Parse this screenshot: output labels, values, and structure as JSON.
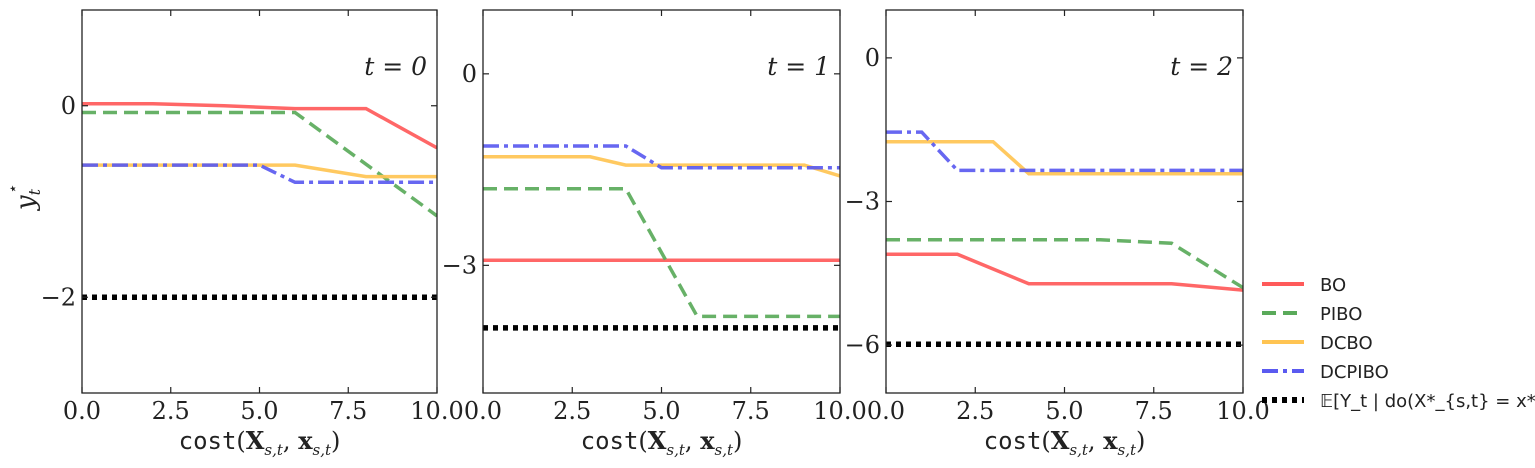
{
  "chart_data": [
    {
      "type": "line",
      "annotation": "t = 0",
      "xlabel": "cost(X_{s,t}, x_{s,t})",
      "ylabel": "y*_t",
      "xlim": [
        0,
        10
      ],
      "ylim": [
        -3.0,
        1.0
      ],
      "xticks": [
        "0.0",
        "2.5",
        "5.0",
        "7.5",
        "10.0"
      ],
      "yticks": [
        {
          "v": 0,
          "label": "0"
        },
        {
          "v": -2,
          "label": "−2"
        }
      ],
      "series": [
        {
          "name": "BO",
          "x": [
            0,
            2,
            4,
            6,
            8,
            10
          ],
          "y": [
            0.02,
            0.02,
            0.0,
            -0.03,
            -0.03,
            -0.44
          ]
        },
        {
          "name": "PIBO",
          "x": [
            0,
            6,
            10
          ],
          "y": [
            -0.07,
            -0.07,
            -1.15
          ]
        },
        {
          "name": "DCBO",
          "x": [
            0,
            6,
            8,
            10
          ],
          "y": [
            -0.62,
            -0.62,
            -0.74,
            -0.74
          ]
        },
        {
          "name": "DCPIBO",
          "x": [
            0,
            5,
            6,
            10
          ],
          "y": [
            -0.62,
            -0.62,
            -0.8,
            -0.8
          ]
        },
        {
          "name": "𝔼[Y_t | do(X*_{s,t} = x*_{s,t})]",
          "x": [
            0,
            10
          ],
          "y": [
            -2.0,
            -2.0
          ]
        }
      ]
    },
    {
      "type": "line",
      "annotation": "t = 1",
      "xlabel": "cost(X_{s,t}, x_{s,t})",
      "ylabel": "",
      "xlim": [
        0,
        10
      ],
      "ylim": [
        -5.0,
        1.0
      ],
      "xticks": [
        "0.0",
        "2.5",
        "5.0",
        "7.5",
        "10.0"
      ],
      "yticks": [
        {
          "v": 0,
          "label": "0"
        },
        {
          "v": -3,
          "label": "−3"
        }
      ],
      "series": [
        {
          "name": "BO",
          "x": [
            0,
            10
          ],
          "y": [
            -2.92,
            -2.92
          ]
        },
        {
          "name": "PIBO",
          "x": [
            0,
            4,
            6,
            10
          ],
          "y": [
            -1.8,
            -1.8,
            -3.8,
            -3.8
          ]
        },
        {
          "name": "DCBO",
          "x": [
            0,
            3,
            4,
            9,
            10
          ],
          "y": [
            -1.3,
            -1.3,
            -1.43,
            -1.43,
            -1.6
          ]
        },
        {
          "name": "DCPIBO",
          "x": [
            0,
            4,
            5,
            10
          ],
          "y": [
            -1.13,
            -1.13,
            -1.47,
            -1.47
          ]
        },
        {
          "name": "𝔼[Y_t | do(X*_{s,t} = x*_{s,t})]",
          "x": [
            0,
            10
          ],
          "y": [
            -3.98,
            -3.98
          ]
        }
      ]
    },
    {
      "type": "line",
      "annotation": "t = 2",
      "xlabel": "cost(X_{s,t}, x_{s,t})",
      "ylabel": "",
      "xlim": [
        0,
        10
      ],
      "ylim": [
        -7.0,
        1.0
      ],
      "xticks": [
        "0.0",
        "2.5",
        "5.0",
        "7.5",
        "10.0"
      ],
      "yticks": [
        {
          "v": 0,
          "label": "0"
        },
        {
          "v": -3,
          "label": "−3"
        },
        {
          "v": -6,
          "label": "−6"
        }
      ],
      "series": [
        {
          "name": "BO",
          "x": [
            0,
            2,
            4,
            8,
            10
          ],
          "y": [
            -4.1,
            -4.1,
            -4.72,
            -4.72,
            -4.85
          ]
        },
        {
          "name": "PIBO",
          "x": [
            0,
            6,
            8,
            10
          ],
          "y": [
            -3.8,
            -3.8,
            -3.87,
            -4.8
          ]
        },
        {
          "name": "DCBO",
          "x": [
            0,
            3,
            4,
            10
          ],
          "y": [
            -1.75,
            -1.75,
            -2.42,
            -2.42
          ]
        },
        {
          "name": "DCPIBO",
          "x": [
            0,
            1,
            2,
            10
          ],
          "y": [
            -1.55,
            -1.55,
            -2.35,
            -2.35
          ]
        },
        {
          "name": "𝔼[Y_t | do(X*_{s,t} = x*_{s,t})]",
          "x": [
            0,
            10
          ],
          "y": [
            -5.98,
            -5.98
          ]
        }
      ]
    }
  ],
  "legend": {
    "position": "right",
    "items": [
      {
        "name": "BO",
        "color": "#ff5a5a",
        "style": "solid"
      },
      {
        "name": "PIBO",
        "color": "#5aaa5a",
        "style": "dashed"
      },
      {
        "name": "DCBO",
        "color": "#ffc452",
        "style": "solid"
      },
      {
        "name": "DCPIBO",
        "color": "#5a5af0",
        "style": "dashdot"
      },
      {
        "name": "𝔼[Y_t | do(X*_{s,t} = x*_{s,t})]",
        "color": "#000000",
        "style": "dotted"
      }
    ]
  }
}
